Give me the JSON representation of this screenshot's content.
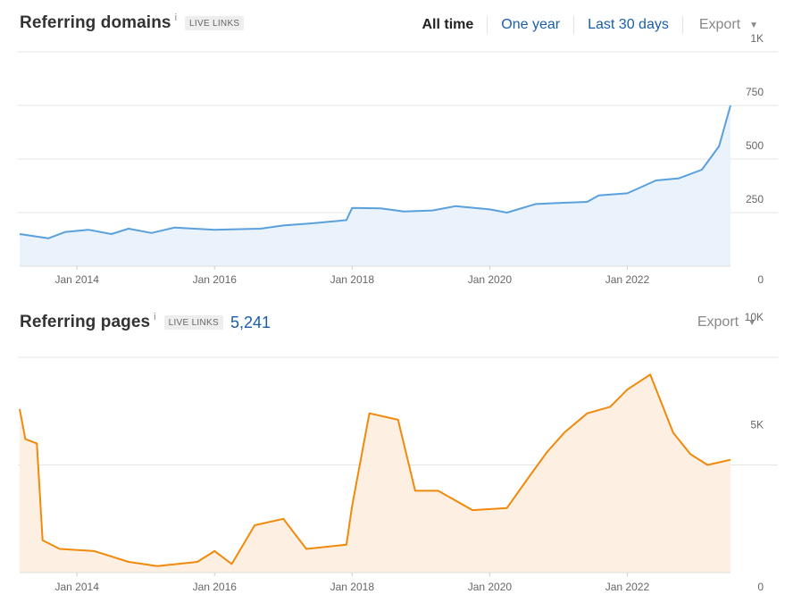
{
  "domains_panel": {
    "title": "Referring domains",
    "info": "i",
    "badge": "LIVE LINKS",
    "tabs": [
      {
        "label": "All time",
        "active": true
      },
      {
        "label": "One year",
        "active": false
      },
      {
        "label": "Last 30 days",
        "active": false
      }
    ],
    "export": "Export"
  },
  "pages_panel": {
    "title": "Referring pages",
    "info": "i",
    "badge": "LIVE LINKS",
    "count": "5,241",
    "export": "Export"
  },
  "colors": {
    "domains_line": "#5aa0dc",
    "domains_fill": "#eaf3fc",
    "pages_line": "#f08a0c",
    "pages_fill": "#fdf0e2",
    "grid": "#e6e6e6",
    "link": "#1a5ea8"
  },
  "chart_data": [
    {
      "type": "area",
      "title": "Referring domains",
      "x_ticks": [
        "Jan 2014",
        "Jan 2016",
        "Jan 2018",
        "Jan 2020",
        "Jan 2022"
      ],
      "y_ticks": [
        "0",
        "250",
        "500",
        "750",
        "1K"
      ],
      "ylim": [
        0,
        1000
      ],
      "xlim": [
        "2013-03",
        "2023-07"
      ],
      "series": [
        {
          "points": [
            [
              "2013-03",
              150
            ],
            [
              "2013-08",
              130
            ],
            [
              "2013-11",
              160
            ],
            [
              "2014-03",
              170
            ],
            [
              "2014-07",
              150
            ],
            [
              "2014-10",
              175
            ],
            [
              "2015-02",
              155
            ],
            [
              "2015-06",
              180
            ],
            [
              "2016-01",
              170
            ],
            [
              "2016-09",
              175
            ],
            [
              "2017-01",
              190
            ],
            [
              "2017-06",
              200
            ],
            [
              "2017-12",
              215
            ],
            [
              "2018-01",
              272
            ],
            [
              "2018-06",
              270
            ],
            [
              "2018-10",
              255
            ],
            [
              "2019-03",
              260
            ],
            [
              "2019-07",
              280
            ],
            [
              "2020-01",
              265
            ],
            [
              "2020-04",
              250
            ],
            [
              "2020-09",
              290
            ],
            [
              "2021-01",
              295
            ],
            [
              "2021-06",
              300
            ],
            [
              "2021-08",
              330
            ],
            [
              "2022-01",
              340
            ],
            [
              "2022-06",
              400
            ],
            [
              "2022-10",
              410
            ],
            [
              "2023-02",
              450
            ],
            [
              "2023-05",
              560
            ],
            [
              "2023-07",
              750
            ]
          ]
        }
      ]
    },
    {
      "type": "area",
      "title": "Referring pages",
      "x_ticks": [
        "Jan 2014",
        "Jan 2016",
        "Jan 2018",
        "Jan 2020",
        "Jan 2022"
      ],
      "y_ticks": [
        "0",
        "5K",
        "10K"
      ],
      "ylim": [
        0,
        10000
      ],
      "xlim": [
        "2013-03",
        "2023-07"
      ],
      "series": [
        {
          "points": [
            [
              "2013-03",
              7600
            ],
            [
              "2013-04",
              6200
            ],
            [
              "2013-06",
              6000
            ],
            [
              "2013-07",
              1500
            ],
            [
              "2013-10",
              1100
            ],
            [
              "2014-04",
              1000
            ],
            [
              "2014-10",
              500
            ],
            [
              "2015-03",
              300
            ],
            [
              "2015-10",
              500
            ],
            [
              "2016-01",
              1000
            ],
            [
              "2016-04",
              400
            ],
            [
              "2016-08",
              2200
            ],
            [
              "2017-01",
              2500
            ],
            [
              "2017-05",
              1100
            ],
            [
              "2017-12",
              1300
            ],
            [
              "2018-01",
              3100
            ],
            [
              "2018-04",
              7400
            ],
            [
              "2018-09",
              7100
            ],
            [
              "2018-12",
              3800
            ],
            [
              "2019-04",
              3800
            ],
            [
              "2019-10",
              2900
            ],
            [
              "2020-04",
              3000
            ],
            [
              "2020-08",
              4500
            ],
            [
              "2020-11",
              5600
            ],
            [
              "2021-02",
              6500
            ],
            [
              "2021-06",
              7400
            ],
            [
              "2021-10",
              7700
            ],
            [
              "2022-01",
              8500
            ],
            [
              "2022-05",
              9200
            ],
            [
              "2022-09",
              6500
            ],
            [
              "2022-12",
              5500
            ],
            [
              "2023-03",
              5000
            ],
            [
              "2023-07",
              5241
            ]
          ]
        }
      ]
    }
  ]
}
